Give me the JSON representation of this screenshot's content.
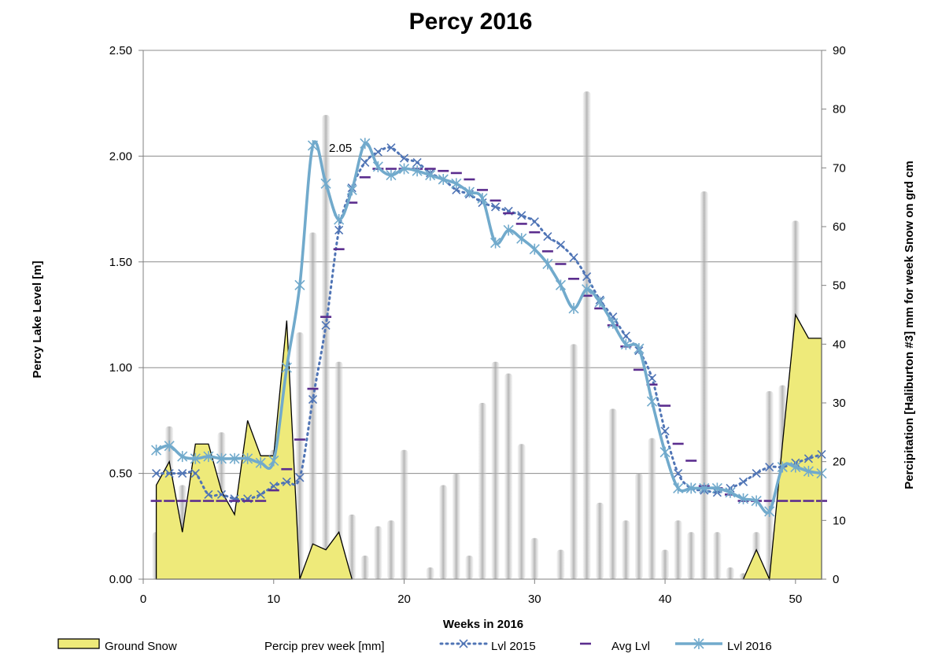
{
  "chart_data": {
    "type": "line",
    "title": "Percy 2016",
    "xlabel": "Weeks in 2016",
    "ylabel": "Percy Lake Level [m]",
    "y2label": "Percipitation [Haliburton #3] mm for week   Snow on grd cm",
    "xlim": [
      0,
      52
    ],
    "ylim": [
      0,
      2.5
    ],
    "y2lim": [
      0,
      90
    ],
    "x_ticks": [
      0,
      10,
      20,
      30,
      40,
      50
    ],
    "y_ticks": [
      "0.00",
      "0.50",
      "1.00",
      "1.50",
      "2.00",
      "2.50"
    ],
    "y2_ticks": [
      0,
      10,
      20,
      30,
      40,
      50,
      60,
      70,
      80,
      90
    ],
    "grid": "horizontal",
    "legend_position": "bottom",
    "annotations": [
      {
        "text": "2.05",
        "x": 13,
        "y": 2.05
      }
    ],
    "series": [
      {
        "name": "Ground Snow",
        "kind": "area",
        "axis": "right",
        "color": "#eeea7a",
        "x": [
          1,
          2,
          3,
          4,
          5,
          6,
          7,
          8,
          9,
          10,
          11,
          12,
          13,
          14,
          15,
          16,
          46,
          47,
          48,
          49,
          50,
          51,
          52
        ],
        "values": [
          16,
          20,
          8,
          23,
          23,
          15,
          11,
          27,
          21,
          21,
          44,
          0,
          6,
          5,
          8,
          0,
          0,
          5,
          0,
          23,
          45,
          41,
          41
        ]
      },
      {
        "name": "Percip prev week [mm]",
        "kind": "bar",
        "axis": "right",
        "color": "#b0b0b0",
        "x": [
          1,
          2,
          3,
          4,
          5,
          6,
          7,
          8,
          9,
          10,
          11,
          12,
          13,
          14,
          15,
          16,
          17,
          18,
          19,
          20,
          21,
          22,
          23,
          24,
          25,
          26,
          27,
          28,
          29,
          30,
          31,
          32,
          33,
          34,
          35,
          36,
          37,
          38,
          39,
          40,
          41,
          42,
          43,
          44,
          45,
          46,
          47,
          48,
          49,
          50,
          51
        ],
        "values": [
          8,
          26,
          16,
          3,
          15,
          25,
          5,
          17,
          4,
          22,
          13,
          42,
          59,
          79,
          37,
          11,
          4,
          9,
          10,
          22,
          0,
          2,
          16,
          18,
          4,
          30,
          37,
          35,
          23,
          7,
          0,
          5,
          40,
          83,
          13,
          29,
          10,
          18,
          24,
          5,
          10,
          8,
          66,
          8,
          2,
          1,
          8,
          32,
          33,
          61,
          20
        ]
      },
      {
        "name": "Lvl 2015",
        "kind": "line",
        "axis": "left",
        "color": "#4f74b5",
        "x": [
          1,
          2,
          3,
          4,
          5,
          6,
          7,
          8,
          9,
          10,
          11,
          12,
          13,
          14,
          15,
          16,
          17,
          18,
          19,
          20,
          21,
          22,
          23,
          24,
          25,
          26,
          27,
          28,
          29,
          30,
          31,
          32,
          33,
          34,
          35,
          36,
          37,
          38,
          39,
          40,
          41,
          42,
          43,
          44,
          45,
          46,
          47,
          48,
          49,
          50,
          51,
          52
        ],
        "values": [
          0.5,
          0.5,
          0.5,
          0.5,
          0.4,
          0.4,
          0.38,
          0.38,
          0.4,
          0.44,
          0.46,
          0.48,
          0.85,
          1.2,
          1.65,
          1.85,
          1.97,
          2.02,
          2.04,
          1.99,
          1.97,
          1.92,
          1.89,
          1.84,
          1.82,
          1.78,
          1.76,
          1.74,
          1.72,
          1.69,
          1.62,
          1.58,
          1.52,
          1.43,
          1.32,
          1.24,
          1.15,
          1.08,
          0.95,
          0.7,
          0.5,
          0.43,
          0.42,
          0.41,
          0.43,
          0.46,
          0.5,
          0.53,
          0.53,
          0.55,
          0.57,
          0.59
        ]
      },
      {
        "name": "Avg Lvl",
        "kind": "dash",
        "axis": "left",
        "color": "#5b2d8e",
        "x": [
          1,
          2,
          3,
          4,
          5,
          6,
          7,
          8,
          9,
          10,
          11,
          12,
          13,
          14,
          15,
          16,
          17,
          18,
          19,
          20,
          21,
          22,
          23,
          24,
          25,
          26,
          27,
          28,
          29,
          30,
          31,
          32,
          33,
          34,
          35,
          36,
          37,
          38,
          39,
          40,
          41,
          42,
          43,
          44,
          45,
          46,
          47,
          48,
          49,
          50,
          51,
          52
        ],
        "values": [
          0.37,
          0.37,
          0.37,
          0.37,
          0.37,
          0.37,
          0.37,
          0.37,
          0.37,
          0.42,
          0.52,
          0.66,
          0.9,
          1.24,
          1.56,
          1.78,
          1.9,
          1.94,
          1.94,
          1.94,
          1.94,
          1.94,
          1.93,
          1.92,
          1.89,
          1.84,
          1.79,
          1.73,
          1.68,
          1.64,
          1.55,
          1.49,
          1.42,
          1.34,
          1.28,
          1.2,
          1.1,
          0.99,
          0.92,
          0.82,
          0.64,
          0.56,
          0.44,
          0.43,
          0.4,
          0.37,
          0.37,
          0.37,
          0.37,
          0.37,
          0.37,
          0.37
        ]
      },
      {
        "name": "Lvl 2016",
        "kind": "line",
        "axis": "left",
        "color": "#71aacc",
        "x": [
          1,
          2,
          3,
          4,
          5,
          6,
          7,
          8,
          9,
          10,
          11,
          12,
          13,
          14,
          15,
          16,
          17,
          18,
          19,
          20,
          21,
          22,
          23,
          24,
          25,
          26,
          27,
          28,
          29,
          30,
          31,
          32,
          33,
          34,
          35,
          36,
          37,
          38,
          39,
          40,
          41,
          42,
          43,
          44,
          45,
          46,
          47,
          48,
          49,
          50,
          51,
          52
        ],
        "values": [
          0.61,
          0.63,
          0.58,
          0.57,
          0.58,
          0.57,
          0.57,
          0.57,
          0.55,
          0.56,
          1.0,
          1.39,
          2.05,
          1.87,
          1.7,
          1.84,
          2.06,
          1.95,
          1.91,
          1.94,
          1.93,
          1.91,
          1.89,
          1.87,
          1.83,
          1.8,
          1.59,
          1.65,
          1.61,
          1.56,
          1.49,
          1.39,
          1.28,
          1.37,
          1.31,
          1.21,
          1.11,
          1.09,
          0.84,
          0.6,
          0.43,
          0.43,
          0.43,
          0.43,
          0.41,
          0.38,
          0.37,
          0.32,
          0.53,
          0.53,
          0.51,
          0.5
        ]
      }
    ]
  }
}
